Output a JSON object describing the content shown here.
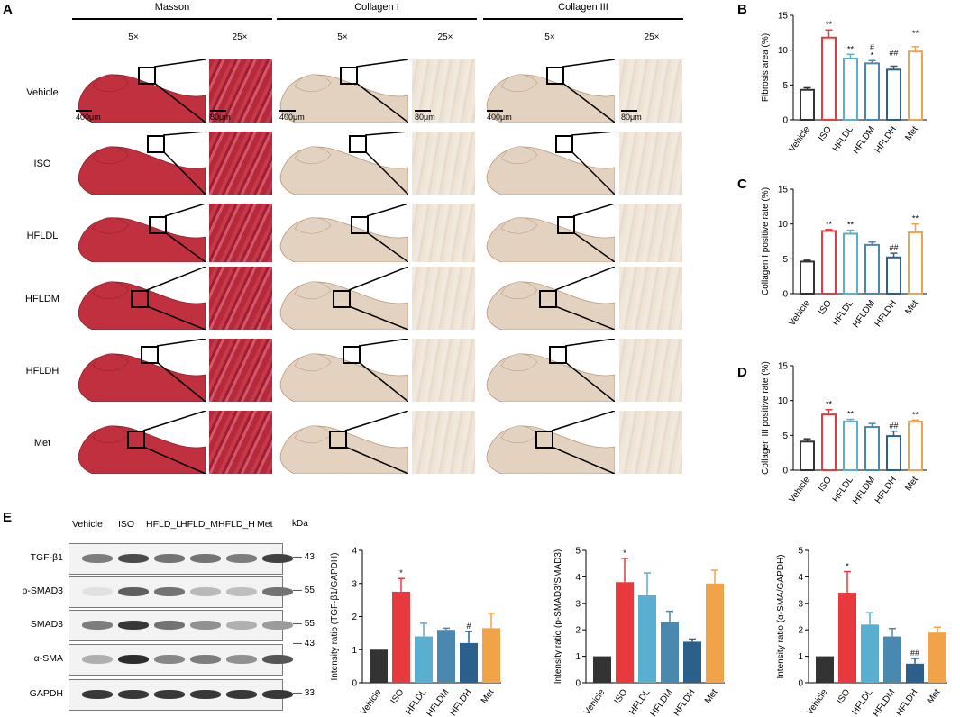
{
  "panel_letters": {
    "a": "A",
    "b": "B",
    "c": "C",
    "d": "D",
    "e": "E"
  },
  "histology": {
    "columns": [
      "Masson",
      "Collagen I",
      "Collagen III"
    ],
    "magnifications": [
      "5×",
      "25×"
    ],
    "rows": [
      "Vehicle",
      "ISO",
      "HFLDL",
      "HFLDM",
      "HFLDH",
      "Met"
    ],
    "scale_low": "400μm",
    "scale_high": "80μm"
  },
  "blot": {
    "lanes": [
      "Vehicle",
      "ISO",
      "HFLD_L",
      "HFLD_M",
      "HFLD_H",
      "Met"
    ],
    "kda_label": "kDa",
    "proteins": [
      {
        "name": "TGF-β1",
        "kda": "43"
      },
      {
        "name": "p-SMAD3",
        "kda": "55"
      },
      {
        "name": "SMAD3",
        "kda": "55"
      },
      {
        "name": "α-SMA",
        "kda": "43"
      },
      {
        "name": "GAPDH",
        "kda": "33"
      }
    ]
  },
  "chart_data": [
    {
      "panel": "B",
      "type": "bar",
      "ylabel": "Fibrosis area (%)",
      "ylim": [
        0,
        15
      ],
      "yticks": [
        "0",
        "5",
        "10",
        "15"
      ],
      "categories": [
        "Vehicle",
        "ISO",
        "HFLDL",
        "HFLDM",
        "HFLDH",
        "Met"
      ],
      "values": [
        4.3,
        11.8,
        8.8,
        8.1,
        7.2,
        9.8
      ],
      "errors": [
        0.3,
        1.1,
        0.6,
        0.4,
        0.5,
        0.7
      ],
      "sig": [
        "",
        "**",
        "**",
        "*",
        "",
        ""
      ],
      "sig2": [
        "",
        "",
        "",
        "#",
        "##",
        "**"
      ],
      "colors": [
        "#333333",
        "#e8393e",
        "#5aaed0",
        "#4a88b0",
        "#2b5f8c",
        "#f0a349"
      ]
    },
    {
      "panel": "C",
      "type": "bar",
      "ylabel": "Collagen I positive rate (%)",
      "ylim": [
        0,
        15
      ],
      "yticks": [
        "0",
        "5",
        "10",
        "15"
      ],
      "categories": [
        "Vehicle",
        "ISO",
        "HFLDL",
        "HFLDM",
        "HFLDH",
        "Met"
      ],
      "values": [
        4.6,
        9.0,
        8.6,
        7.0,
        5.2,
        8.8
      ],
      "errors": [
        0.2,
        0.2,
        0.5,
        0.4,
        0.6,
        1.2
      ],
      "sig": [
        "",
        "**",
        "**",
        "",
        "##",
        "**"
      ],
      "sig2": [
        "",
        "",
        "",
        "",
        "",
        ""
      ],
      "colors": [
        "#333333",
        "#e8393e",
        "#5aaed0",
        "#4a88b0",
        "#2b5f8c",
        "#f0a349"
      ]
    },
    {
      "panel": "D",
      "type": "bar",
      "ylabel": "Collagen III positive rate (%)",
      "ylim": [
        0,
        15
      ],
      "yticks": [
        "0",
        "5",
        "10",
        "15"
      ],
      "categories": [
        "Vehicle",
        "ISO",
        "HFLDL",
        "HFLDM",
        "HFLDH",
        "Met"
      ],
      "values": [
        4.1,
        8.0,
        7.0,
        6.2,
        4.9,
        7.0
      ],
      "errors": [
        0.4,
        0.7,
        0.3,
        0.5,
        0.7,
        0.2
      ],
      "sig": [
        "",
        "**",
        "**",
        "",
        "##",
        "**"
      ],
      "sig2": [
        "",
        "",
        "",
        "",
        "",
        ""
      ],
      "colors": [
        "#333333",
        "#e8393e",
        "#5aaed0",
        "#4a88b0",
        "#2b5f8c",
        "#f0a349"
      ]
    },
    {
      "panel": "E1",
      "type": "bar",
      "ylabel": "Intensity ratio (TGF-β1/GAPDH)",
      "ylim": [
        0,
        4
      ],
      "yticks": [
        "0",
        "1",
        "2",
        "3",
        "4"
      ],
      "categories": [
        "Vehicle",
        "ISO",
        "HFLDL",
        "HFLDM",
        "HFLDH",
        "Met"
      ],
      "values": [
        1.0,
        2.75,
        1.4,
        1.6,
        1.2,
        1.65
      ],
      "errors": [
        0,
        0.4,
        0.4,
        0.05,
        0.35,
        0.45
      ],
      "sig": [
        "",
        "*",
        "",
        "",
        "#",
        ""
      ],
      "sig2": [
        "",
        "",
        "",
        "",
        "",
        ""
      ],
      "colors": [
        "#333333",
        "#e8393e",
        "#5aaed0",
        "#4a88b0",
        "#2b5f8c",
        "#f0a349"
      ]
    },
    {
      "panel": "E2",
      "type": "bar",
      "ylabel": "Intensity ratio (p-SMAD3/SMAD3)",
      "ylim": [
        0,
        5
      ],
      "yticks": [
        "0",
        "1",
        "2",
        "3",
        "4",
        "5"
      ],
      "categories": [
        "Vehicle",
        "ISO",
        "HFLDL",
        "HFLDM",
        "HFLDH",
        "Met"
      ],
      "values": [
        1.0,
        3.8,
        3.3,
        2.3,
        1.55,
        3.75
      ],
      "errors": [
        0,
        0.9,
        0.85,
        0.4,
        0.1,
        0.5
      ],
      "sig": [
        "",
        "*",
        "",
        "",
        "",
        ""
      ],
      "sig2": [
        "",
        "",
        "",
        "",
        "",
        ""
      ],
      "colors": [
        "#333333",
        "#e8393e",
        "#5aaed0",
        "#4a88b0",
        "#2b5f8c",
        "#f0a349"
      ]
    },
    {
      "panel": "E3",
      "type": "bar",
      "ylabel": "Intensity ratio (α-SMA/GAPDH)",
      "ylim": [
        0,
        5
      ],
      "yticks": [
        "0",
        "1",
        "2",
        "3",
        "4",
        "5"
      ],
      "categories": [
        "Vehicle",
        "ISO",
        "HFLDL",
        "HFLDM",
        "HFLDH",
        "Met"
      ],
      "values": [
        1.0,
        3.4,
        2.2,
        1.75,
        0.72,
        1.9
      ],
      "errors": [
        0,
        0.8,
        0.45,
        0.3,
        0.2,
        0.2
      ],
      "sig": [
        "",
        "*",
        "",
        "",
        "##",
        ""
      ],
      "sig2": [
        "",
        "",
        "",
        "",
        "",
        ""
      ],
      "colors": [
        "#333333",
        "#e8393e",
        "#5aaed0",
        "#4a88b0",
        "#2b5f8c",
        "#f0a349"
      ]
    }
  ]
}
